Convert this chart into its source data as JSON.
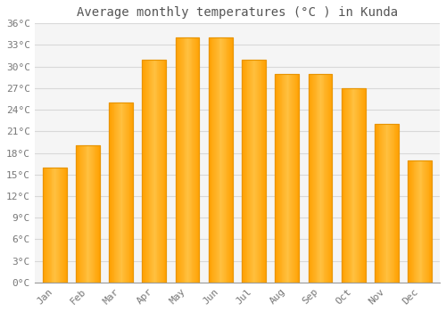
{
  "title": "Average monthly temperatures (°C ) in Kunda",
  "months": [
    "Jan",
    "Feb",
    "Mar",
    "Apr",
    "May",
    "Jun",
    "Jul",
    "Aug",
    "Sep",
    "Oct",
    "Nov",
    "Dec"
  ],
  "values": [
    16,
    19,
    25,
    31,
    34,
    34,
    31,
    29,
    29,
    27,
    22,
    17
  ],
  "bar_color": "#FFA500",
  "bar_face_color": "#FFB733",
  "bar_edge_color": "#E89400",
  "background_color": "#FFFFFF",
  "plot_bg_color": "#F5F5F5",
  "grid_color": "#D8D8D8",
  "text_color": "#777777",
  "title_color": "#555555",
  "ylim": [
    0,
    36
  ],
  "yticks": [
    0,
    3,
    6,
    9,
    12,
    15,
    18,
    21,
    24,
    27,
    30,
    33,
    36
  ],
  "ytick_labels": [
    "0°C",
    "3°C",
    "6°C",
    "9°C",
    "12°C",
    "15°C",
    "18°C",
    "21°C",
    "24°C",
    "27°C",
    "30°C",
    "33°C",
    "36°C"
  ],
  "title_fontsize": 10,
  "tick_fontsize": 8,
  "bar_width": 0.72
}
